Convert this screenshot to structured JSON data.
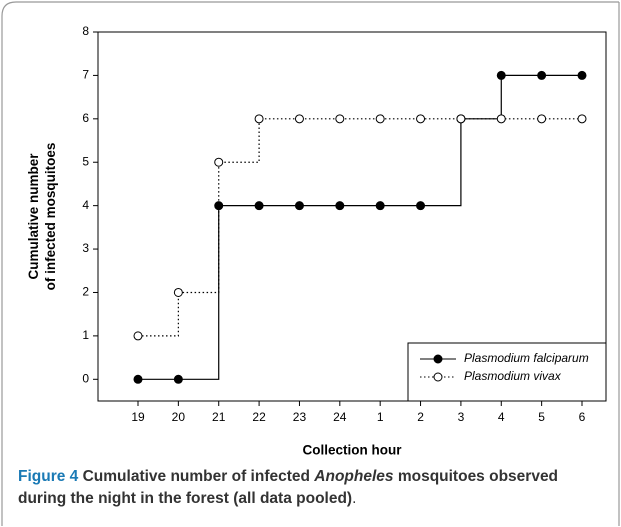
{
  "chart_data": {
    "type": "step",
    "xlabel": "Collection hour",
    "ylabel": [
      "Cumulative number",
      "of infected mosquitoes"
    ],
    "categories": [
      "19",
      "20",
      "21",
      "22",
      "23",
      "24",
      "1",
      "2",
      "3",
      "4",
      "5",
      "6"
    ],
    "series": [
      {
        "name": "Plasmodium falciparum",
        "color": "#000000",
        "line_style": "solid",
        "marker_fill": "#000000",
        "values": [
          0,
          0,
          4,
          4,
          4,
          4,
          4,
          4,
          6,
          7,
          7,
          7
        ]
      },
      {
        "name": "Plasmodium vivax",
        "color": "#000000",
        "line_style": "dotted",
        "marker_fill": "#ffffff",
        "values": [
          1,
          2,
          5,
          6,
          6,
          6,
          6,
          6,
          6,
          6,
          6,
          6
        ]
      }
    ],
    "ylim": [
      -0.5,
      8
    ],
    "yticks": [
      0,
      1,
      2,
      3,
      4,
      5,
      6,
      7,
      8
    ],
    "legend": "lower right",
    "caption": {
      "label": "Figure 4",
      "parts": [
        "Cumulative number of infected ",
        "Anopheles",
        " mosquitoes observed during the night in the forest (all data pooled)",
        "."
      ]
    }
  }
}
